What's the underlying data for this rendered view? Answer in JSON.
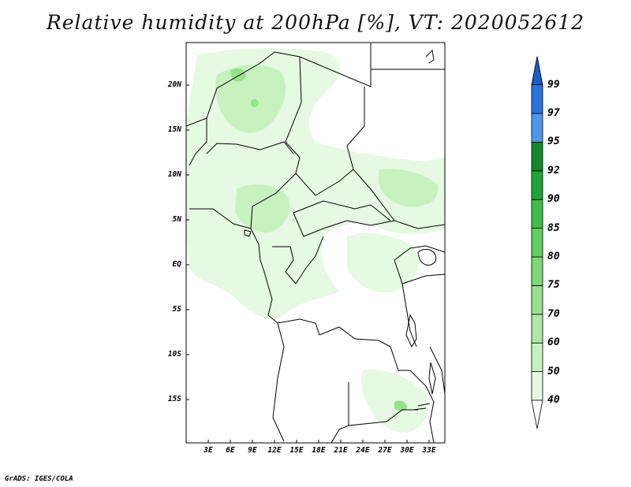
{
  "title": "Relative humidity at 200hPa [%], VT: 2020052612",
  "credit": "GrADS: IGES/COLA",
  "lat_labels": [
    "20N",
    "15N",
    "10N",
    "5N",
    "EQ",
    "5S",
    "10S",
    "15S"
  ],
  "lon_labels": [
    "3E",
    "6E",
    "9E",
    "12E",
    "15E",
    "18E",
    "21E",
    "24E",
    "27E",
    "30E",
    "33E"
  ],
  "colorbar": {
    "labels": [
      "40",
      "50",
      "60",
      "70",
      "75",
      "80",
      "85",
      "90",
      "92",
      "95",
      "97",
      "99"
    ],
    "colors": [
      "#e6f9e2",
      "#c8f1c0",
      "#afe9a5",
      "#96e28c",
      "#7dd974",
      "#5fcf5e",
      "#3ebe47",
      "#1fa436",
      "#12872a",
      "#4c98ec",
      "#2c74dc",
      "#1c5cc4"
    ]
  },
  "map_colors": {
    "humid_light": "#e6f9e2",
    "humid_mid": "#c8f1c0",
    "humid_high": "#96e28c",
    "border": "#000000"
  }
}
